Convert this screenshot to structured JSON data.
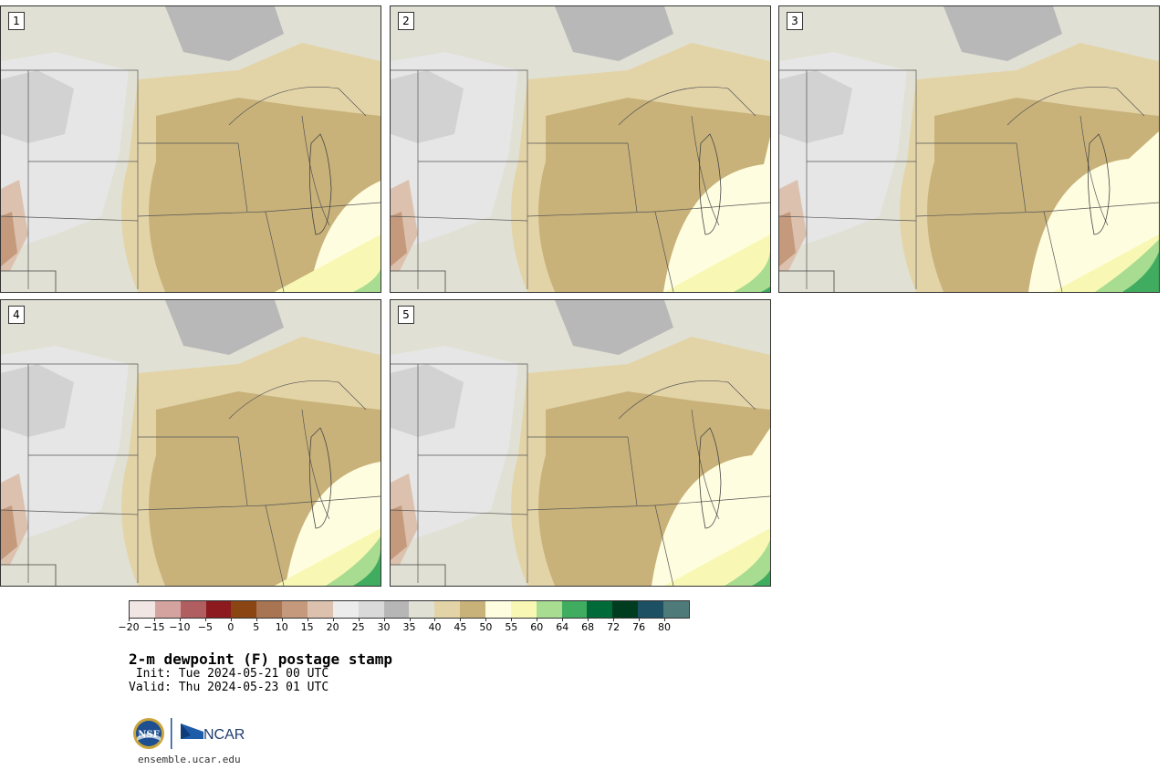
{
  "map": {
    "title": "2-m dewpoint (F) postage stamp",
    "init": " Init: Tue 2024-05-21 00 UTC",
    "valid": "Valid: Thu 2024-05-23 01 UTC",
    "panels": [
      {
        "label": "1",
        "moist_reach": 0.3,
        "green_reach": 0.15
      },
      {
        "label": "2",
        "moist_reach": 0.45,
        "green_reach": 0.2
      },
      {
        "label": "3",
        "moist_reach": 0.55,
        "green_reach": 0.35
      },
      {
        "label": "4",
        "moist_reach": 0.4,
        "green_reach": 0.3
      },
      {
        "label": "5",
        "moist_reach": 0.5,
        "green_reach": 0.25
      }
    ]
  },
  "colorbar": {
    "tick_labels": [
      "-20",
      "-15",
      "-10",
      "-5",
      "0",
      "5",
      "10",
      "15",
      "20",
      "25",
      "30",
      "35",
      "40",
      "45",
      "50",
      "55",
      "60",
      "64",
      "68",
      "72",
      "76",
      "80"
    ],
    "colors": [
      "#f2e6e4",
      "#d4a3a0",
      "#b05e5f",
      "#8c1a1f",
      "#8b4513",
      "#a87452",
      "#c4997c",
      "#dcc2ae",
      "#ececec",
      "#d9d9d9",
      "#b6b6b6",
      "#e0e0d4",
      "#e3d4a8",
      "#c8b27a",
      "#fffde0",
      "#f8f8b4",
      "#a8dc90",
      "#40ac60",
      "#006a38",
      "#003c20",
      "#1e5064",
      "#4f7a7a"
    ]
  },
  "branding": {
    "nsf": "NSF",
    "ncar": "NCAR",
    "site": "ensemble.ucar.edu"
  }
}
